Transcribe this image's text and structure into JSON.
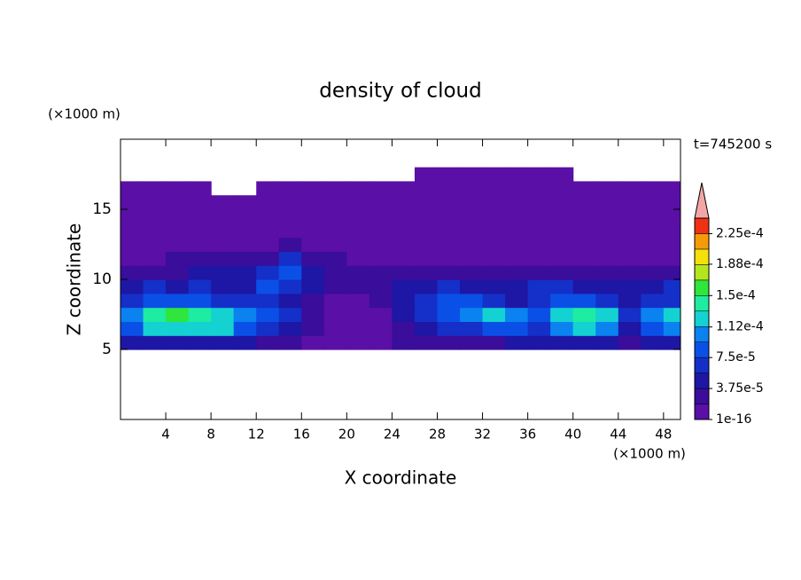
{
  "chart_data": {
    "type": "contour",
    "title": "density of cloud",
    "x_label": "X coordinate",
    "y_label": "Z coordinate",
    "x_unit": "(×1000 m)",
    "y_unit": "(×1000 m)",
    "annotation": "t=745200 s",
    "xlim": [
      0,
      49.5
    ],
    "ylim": [
      0,
      20
    ],
    "xticks": [
      4,
      8,
      12,
      16,
      20,
      24,
      28,
      32,
      36,
      40,
      44,
      48
    ],
    "yticks": [
      5,
      10,
      15
    ],
    "grid": false,
    "x": [
      1,
      3,
      5,
      7,
      9,
      11,
      13,
      15,
      17,
      19,
      21,
      23,
      25,
      27,
      29,
      31,
      33,
      35,
      37,
      39,
      41,
      43,
      45,
      47,
      49
    ],
    "y": [
      0.5,
      1.5,
      2.5,
      3.5,
      4.5,
      5.5,
      6.5,
      7.5,
      8.5,
      9.5,
      10.5,
      11.5,
      12.5,
      13.5,
      14.5,
      15.5,
      16.5,
      17.5,
      18.5,
      19.5
    ],
    "z": [
      [
        null,
        null,
        null,
        null,
        null,
        null,
        null,
        null,
        null,
        null,
        null,
        null,
        null,
        null,
        null,
        null,
        null,
        null,
        null,
        null,
        null,
        null,
        null,
        null,
        null
      ],
      [
        null,
        null,
        null,
        null,
        null,
        null,
        null,
        null,
        null,
        null,
        null,
        null,
        null,
        null,
        null,
        null,
        null,
        null,
        null,
        null,
        null,
        null,
        null,
        null,
        null
      ],
      [
        null,
        null,
        null,
        null,
        null,
        null,
        null,
        null,
        null,
        null,
        null,
        null,
        null,
        null,
        null,
        null,
        null,
        null,
        null,
        null,
        null,
        null,
        null,
        null,
        null
      ],
      [
        null,
        null,
        null,
        null,
        null,
        null,
        null,
        null,
        null,
        null,
        null,
        null,
        null,
        null,
        null,
        null,
        null,
        null,
        null,
        null,
        null,
        null,
        null,
        null,
        null
      ],
      [
        null,
        null,
        null,
        null,
        null,
        null,
        null,
        null,
        null,
        null,
        null,
        null,
        null,
        null,
        null,
        null,
        null,
        null,
        null,
        null,
        null,
        null,
        null,
        null,
        null
      ],
      [
        4.5e-05,
        4.5e-05,
        4.5e-05,
        4.5e-05,
        4.5e-05,
        4.5e-05,
        2.5e-05,
        2.5e-05,
        5e-06,
        5e-06,
        5e-06,
        5e-06,
        2.5e-05,
        2.5e-05,
        2.5e-05,
        2.5e-05,
        2.5e-05,
        4.5e-05,
        4.5e-05,
        4.5e-05,
        4.5e-05,
        4.5e-05,
        2.5e-05,
        4.5e-05,
        4.5e-05
      ],
      [
        8.5e-05,
        0.00012,
        0.00012,
        0.00012,
        0.00012,
        8.5e-05,
        6.5e-05,
        4.5e-05,
        2.5e-05,
        5e-06,
        5e-06,
        5e-06,
        2.5e-05,
        4.5e-05,
        6.5e-05,
        6.5e-05,
        8.5e-05,
        8.5e-05,
        6.5e-05,
        0.000105,
        0.00012,
        0.000105,
        4.5e-05,
        8.5e-05,
        0.000105
      ],
      [
        0.000105,
        0.00014,
        0.00016,
        0.00014,
        0.00012,
        0.000105,
        8.5e-05,
        6.5e-05,
        2.5e-05,
        5e-06,
        5e-06,
        5e-06,
        4.5e-05,
        6.5e-05,
        8.5e-05,
        0.000105,
        0.00012,
        0.000105,
        8.5e-05,
        0.00012,
        0.00014,
        0.00012,
        6.5e-05,
        0.000105,
        0.00012
      ],
      [
        6.5e-05,
        8.5e-05,
        8.5e-05,
        8.5e-05,
        6.5e-05,
        6.5e-05,
        6.5e-05,
        4.5e-05,
        2.5e-05,
        5e-06,
        5e-06,
        2.5e-05,
        4.5e-05,
        6.5e-05,
        8.5e-05,
        8.5e-05,
        6.5e-05,
        4.5e-05,
        6.5e-05,
        8.5e-05,
        8.5e-05,
        6.5e-05,
        4.5e-05,
        6.5e-05,
        6.5e-05
      ],
      [
        4.5e-05,
        6.5e-05,
        4.5e-05,
        6.5e-05,
        4.5e-05,
        4.5e-05,
        8.5e-05,
        6.5e-05,
        4.5e-05,
        2.5e-05,
        2.5e-05,
        2.5e-05,
        4.5e-05,
        4.5e-05,
        6.5e-05,
        4.5e-05,
        4.5e-05,
        4.5e-05,
        6.5e-05,
        6.5e-05,
        4.5e-05,
        4.5e-05,
        4.5e-05,
        4.5e-05,
        6.5e-05
      ],
      [
        2.5e-05,
        2.5e-05,
        2.5e-05,
        4.5e-05,
        4.5e-05,
        4.5e-05,
        6.5e-05,
        8.5e-05,
        4.5e-05,
        2.5e-05,
        2.5e-05,
        2.5e-05,
        2.5e-05,
        2.5e-05,
        2.5e-05,
        2.5e-05,
        2.5e-05,
        2.5e-05,
        2.5e-05,
        2.5e-05,
        2.5e-05,
        2.5e-05,
        2.5e-05,
        2.5e-05,
        2.5e-05
      ],
      [
        5e-06,
        5e-06,
        2.5e-05,
        2.5e-05,
        2.5e-05,
        2.5e-05,
        2.5e-05,
        6.5e-05,
        2.5e-05,
        2.5e-05,
        5e-06,
        5e-06,
        5e-06,
        5e-06,
        5e-06,
        5e-06,
        5e-06,
        5e-06,
        5e-06,
        5e-06,
        5e-06,
        5e-06,
        5e-06,
        5e-06,
        5e-06
      ],
      [
        5e-06,
        5e-06,
        5e-06,
        5e-06,
        5e-06,
        5e-06,
        5e-06,
        2.5e-05,
        5e-06,
        5e-06,
        5e-06,
        5e-06,
        5e-06,
        5e-06,
        5e-06,
        5e-06,
        5e-06,
        5e-06,
        5e-06,
        5e-06,
        5e-06,
        5e-06,
        5e-06,
        5e-06,
        5e-06
      ],
      [
        5e-06,
        5e-06,
        5e-06,
        5e-06,
        5e-06,
        5e-06,
        5e-06,
        5e-06,
        5e-06,
        5e-06,
        5e-06,
        5e-06,
        5e-06,
        5e-06,
        5e-06,
        5e-06,
        5e-06,
        5e-06,
        5e-06,
        5e-06,
        5e-06,
        5e-06,
        5e-06,
        5e-06,
        5e-06
      ],
      [
        5e-06,
        5e-06,
        5e-06,
        5e-06,
        5e-06,
        5e-06,
        5e-06,
        5e-06,
        5e-06,
        5e-06,
        5e-06,
        5e-06,
        5e-06,
        5e-06,
        5e-06,
        5e-06,
        5e-06,
        5e-06,
        5e-06,
        5e-06,
        5e-06,
        5e-06,
        5e-06,
        5e-06,
        5e-06
      ],
      [
        5e-06,
        5e-06,
        5e-06,
        5e-06,
        5e-06,
        5e-06,
        5e-06,
        5e-06,
        5e-06,
        5e-06,
        5e-06,
        5e-06,
        5e-06,
        5e-06,
        5e-06,
        5e-06,
        5e-06,
        5e-06,
        5e-06,
        5e-06,
        5e-06,
        5e-06,
        5e-06,
        5e-06,
        5e-06
      ],
      [
        5e-06,
        5e-06,
        5e-06,
        5e-06,
        null,
        null,
        5e-06,
        5e-06,
        5e-06,
        5e-06,
        5e-06,
        5e-06,
        5e-06,
        5e-06,
        5e-06,
        5e-06,
        5e-06,
        5e-06,
        5e-06,
        5e-06,
        5e-06,
        5e-06,
        5e-06,
        5e-06,
        5e-06
      ],
      [
        null,
        null,
        null,
        null,
        null,
        null,
        null,
        null,
        null,
        null,
        null,
        null,
        null,
        5e-06,
        5e-06,
        5e-06,
        5e-06,
        5e-06,
        5e-06,
        5e-06,
        null,
        null,
        null,
        null,
        null
      ],
      [
        null,
        null,
        null,
        null,
        null,
        null,
        null,
        null,
        null,
        null,
        null,
        null,
        null,
        null,
        null,
        null,
        null,
        null,
        null,
        null,
        null,
        null,
        null,
        null,
        null
      ],
      [
        null,
        null,
        null,
        null,
        null,
        null,
        null,
        null,
        null,
        null,
        null,
        null,
        null,
        null,
        null,
        null,
        null,
        null,
        null,
        null,
        null,
        null,
        null,
        null,
        null
      ]
    ],
    "colorbar": {
      "levels": [
        1e-16,
        1.875e-05,
        3.75e-05,
        5.625e-05,
        7.5e-05,
        9.375e-05,
        0.0001125,
        0.00013125,
        0.00015,
        0.00016875,
        0.0001875,
        0.00020625,
        0.000225,
        0.00024375
      ],
      "colors": [
        "#5a0fa6",
        "#3a0d9a",
        "#1e16a4",
        "#1430c8",
        "#0a50e6",
        "#0a82f0",
        "#14d2d2",
        "#1eeca0",
        "#2ee63c",
        "#b4e61e",
        "#f5e10a",
        "#f59b0a",
        "#f03214"
      ],
      "extend_color": "#f4a6a6",
      "ticks": [
        1e-16,
        {
          "value": 3.75e-05,
          "label": "3.75e-5"
        },
        {
          "value": 7.5e-05,
          "label": "7.5e-5"
        },
        {
          "value": 0.000112,
          "label": "1.12e-4"
        },
        {
          "value": 0.00015,
          "label": "1.5e-4"
        },
        {
          "value": 0.000188,
          "label": "1.88e-4"
        },
        {
          "value": 0.000225,
          "label": "2.25e-4"
        }
      ]
    }
  }
}
